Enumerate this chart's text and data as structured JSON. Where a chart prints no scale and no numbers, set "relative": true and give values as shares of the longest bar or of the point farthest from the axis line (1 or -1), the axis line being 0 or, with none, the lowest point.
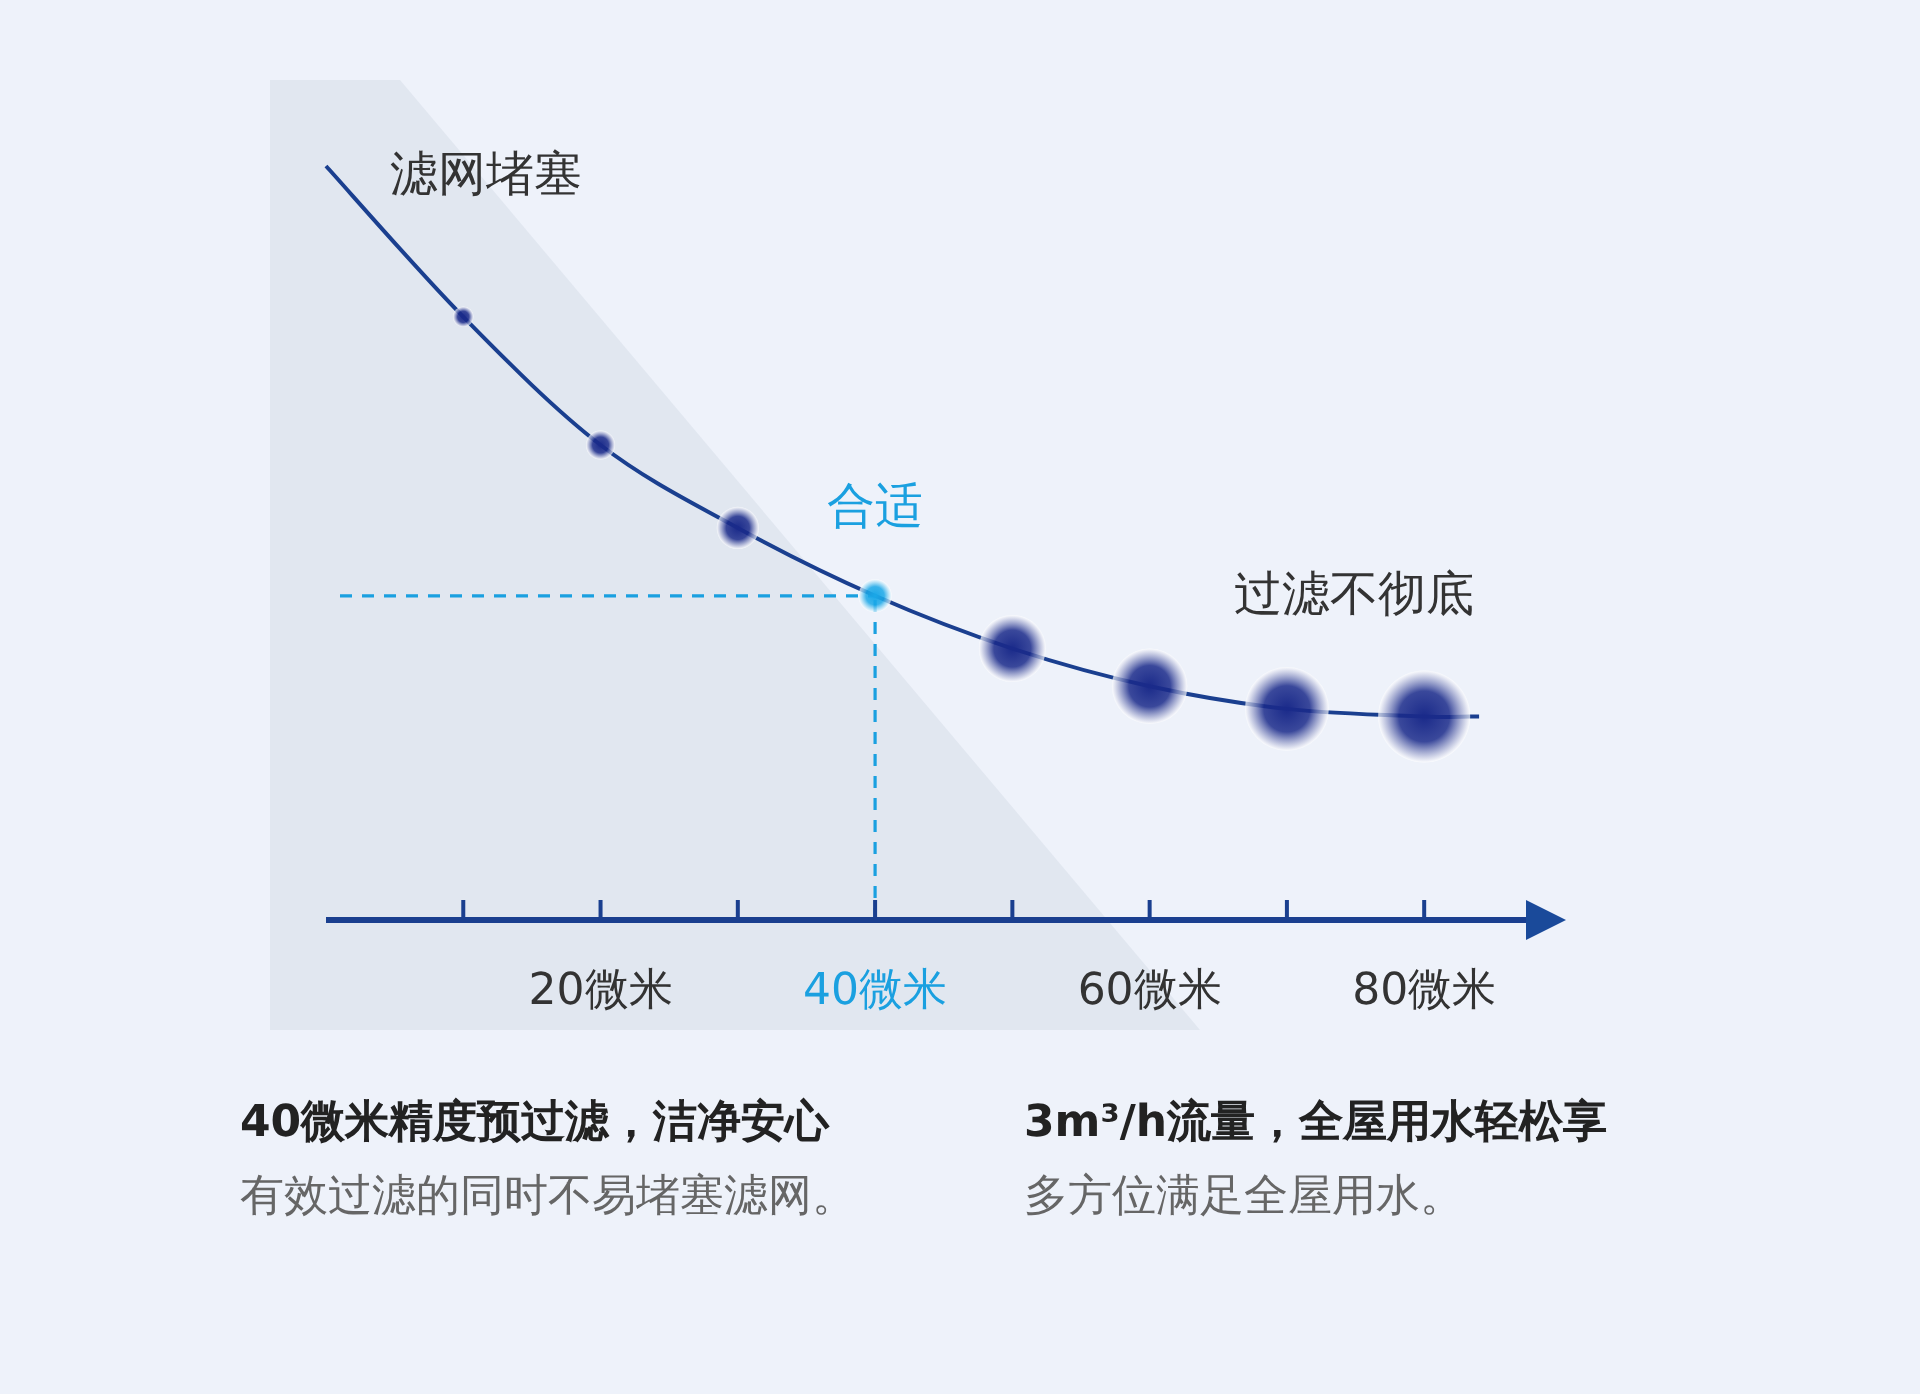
{
  "chart_data": {
    "type": "line",
    "relative": true,
    "xlim": [
      0,
      88
    ],
    "xticks": [
      {
        "value": 10,
        "label": null
      },
      {
        "value": 20,
        "label": "20微米"
      },
      {
        "value": 30,
        "label": null
      },
      {
        "value": 40,
        "label": "40微米"
      },
      {
        "value": 50,
        "label": null
      },
      {
        "value": 60,
        "label": "60微米"
      },
      {
        "value": 70,
        "label": null
      },
      {
        "value": 80,
        "label": "80微米"
      }
    ],
    "tick_labels": "x",
    "series": [
      {
        "color": "#1a3f8f",
        "x": [
          0,
          10,
          20,
          30,
          40,
          50,
          60,
          70,
          80,
          84
        ],
        "values": [
          1,
          0.8,
          0.63,
          0.52,
          0.43,
          0.36,
          0.31,
          0.28,
          0.27,
          0.27
        ]
      },
      {
        "type": "bubble",
        "x": [
          10,
          20,
          30,
          40,
          50,
          60,
          70,
          80
        ],
        "values": [
          0.8,
          0.63,
          0.52,
          0.43,
          0.36,
          0.31,
          0.28,
          0.27
        ],
        "sizes": [
          0.05,
          0.1,
          0.21,
          0.13,
          0.53,
          0.67,
          0.83,
          1
        ],
        "colors": [
          "#1a2a8a",
          "#1a2a8a",
          "#1a2a8a",
          "#1aa8e8",
          "#1a2a8a",
          "#1a2a8a",
          "#1a2a8a",
          "#1a2a8a"
        ]
      }
    ],
    "ref_lines": [
      {
        "axis": "x",
        "value": 40,
        "color": "#1aa0e0",
        "line_style": "dashed"
      },
      {
        "axis": "y",
        "value": 0.43,
        "color": "#1aa0e0",
        "line_style": "dashed"
      }
    ],
    "annotations": [
      {
        "text": "滤网堵塞",
        "x": 0,
        "y": 1
      },
      {
        "text": "合适",
        "x": 40,
        "y": 0.43
      },
      {
        "text": "过滤不彻底",
        "x": 80,
        "y": 0.27
      },
      "40微米精度预过滤，洁净安心",
      "有效过滤的同时不易堵塞滤网。",
      "3m³/h流量，全屋用水轻松享",
      "多方位满足全屋用水。"
    ]
  }
}
